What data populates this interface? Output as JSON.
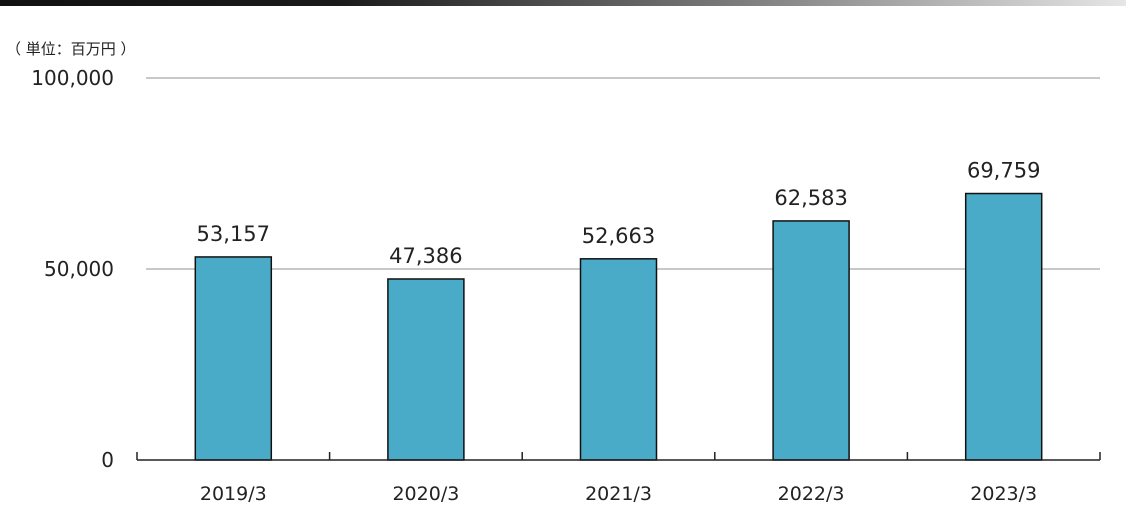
{
  "unit_label": "（ 単位：百万円 ）",
  "chart_data": {
    "type": "bar",
    "categories": [
      "2019/3",
      "2020/3",
      "2021/3",
      "2022/3",
      "2023/3"
    ],
    "values": [
      53157,
      47386,
      52663,
      62583,
      69759
    ],
    "value_labels": [
      "53,157",
      "47,386",
      "52,663",
      "62,583",
      "69,759"
    ],
    "y_ticks": [
      {
        "value": 0,
        "label": "0"
      },
      {
        "value": 50000,
        "label": "50,000"
      },
      {
        "value": 100000,
        "label": "100,000"
      }
    ],
    "ylim": [
      0,
      100000
    ],
    "grid": true,
    "bar_color": "#4aabc8",
    "bar_stroke": "#111111",
    "grid_color": "#a6a6a6"
  }
}
